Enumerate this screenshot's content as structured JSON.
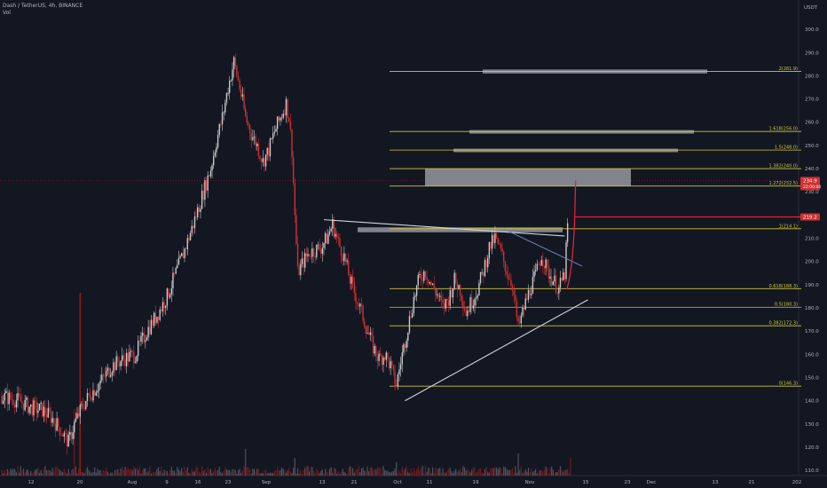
{
  "header": {
    "symbol_line": "Dash / TetherUS, 4h, BINANCE",
    "volume_label": "Vol"
  },
  "colors": {
    "background": "#131722",
    "fib_line": "#cfc43a",
    "zone": "#9a9ca3",
    "trendline": "#d1d4dc",
    "down_candle": "#d32f2f",
    "up_candle": "#c8c8c8",
    "projection": "#e0243a",
    "axis_text": "#b2b5be"
  },
  "chart_data": {
    "type": "candlestick",
    "title": "Dash / TetherUS, 4h, BINANCE",
    "currency_label": "USDT",
    "ylim": [
      105,
      315
    ],
    "y_ticks": [
      "110.0",
      "120.0",
      "130.0",
      "140.0",
      "150.0",
      "160.0",
      "170.0",
      "180.0",
      "190.0",
      "200.0",
      "210.0",
      "220.0",
      "230.0",
      "240.0",
      "250.0",
      "260.0",
      "270.0",
      "280.0",
      "290.0",
      "300.0",
      "310.0"
    ],
    "x_tick_labels": [
      "12",
      "20",
      "Aug",
      "9",
      "16",
      "23",
      "Sep",
      "13",
      "21",
      "Oct",
      "11",
      "19",
      "Nov",
      "15",
      "23",
      "Dec",
      "13",
      "21",
      "202"
    ],
    "price_path": [
      [
        0,
        142
      ],
      [
        6,
        140
      ],
      [
        10,
        137
      ],
      [
        14,
        136
      ],
      [
        17,
        133
      ],
      [
        20,
        128
      ],
      [
        23,
        122
      ],
      [
        25,
        130
      ],
      [
        28,
        138
      ],
      [
        30,
        142
      ],
      [
        34,
        148
      ],
      [
        38,
        155
      ],
      [
        42,
        158
      ],
      [
        46,
        160
      ],
      [
        50,
        170
      ],
      [
        54,
        178
      ],
      [
        57,
        185
      ],
      [
        60,
        195
      ],
      [
        63,
        205
      ],
      [
        66,
        216
      ],
      [
        69,
        228
      ],
      [
        72,
        240
      ],
      [
        74,
        252
      ],
      [
        76,
        262
      ],
      [
        78,
        275
      ],
      [
        80,
        286
      ],
      [
        82,
        275
      ],
      [
        84,
        262
      ],
      [
        86,
        255
      ],
      [
        88,
        250
      ],
      [
        90,
        243
      ],
      [
        92,
        248
      ],
      [
        94,
        256
      ],
      [
        96,
        262
      ],
      [
        98,
        268
      ],
      [
        99,
        262
      ],
      [
        100,
        248
      ],
      [
        101,
        220
      ],
      [
        102,
        195
      ],
      [
        104,
        200
      ],
      [
        106,
        204
      ],
      [
        108,
        205
      ],
      [
        110,
        206
      ],
      [
        112,
        210
      ],
      [
        114,
        216
      ],
      [
        116,
        208
      ],
      [
        118,
        202
      ],
      [
        120,
        192
      ],
      [
        122,
        185
      ],
      [
        124,
        178
      ],
      [
        126,
        170
      ],
      [
        128,
        163
      ],
      [
        130,
        158
      ],
      [
        132,
        160
      ],
      [
        134,
        155
      ],
      [
        135,
        150
      ],
      [
        136,
        147
      ],
      [
        138,
        160
      ],
      [
        140,
        172
      ],
      [
        142,
        184
      ],
      [
        144,
        193
      ],
      [
        146,
        196
      ],
      [
        148,
        190
      ],
      [
        150,
        186
      ],
      [
        152,
        180
      ],
      [
        154,
        184
      ],
      [
        156,
        192
      ],
      [
        158,
        188
      ],
      [
        160,
        178
      ],
      [
        162,
        183
      ],
      [
        164,
        188
      ],
      [
        166,
        196
      ],
      [
        168,
        206
      ],
      [
        170,
        210
      ],
      [
        172,
        204
      ],
      [
        174,
        196
      ],
      [
        176,
        190
      ],
      [
        178,
        171
      ],
      [
        180,
        180
      ],
      [
        182,
        188
      ],
      [
        184,
        194
      ],
      [
        186,
        203
      ],
      [
        188,
        196
      ],
      [
        190,
        192
      ],
      [
        192,
        188
      ],
      [
        194,
        195
      ],
      [
        196,
        234.9
      ]
    ],
    "volume_spikes": [
      [
        25,
        75
      ],
      [
        84,
        30
      ],
      [
        101,
        20
      ],
      [
        136,
        15
      ],
      [
        178,
        25
      ],
      [
        196,
        20
      ]
    ],
    "fib_levels": [
      {
        "ratio": "0",
        "price": 146.3,
        "label": "0(146.3)"
      },
      {
        "ratio": "0.382",
        "price": 172.3,
        "label": "0.382(172.3)"
      },
      {
        "ratio": "0.5",
        "price": 180.3,
        "label": "0.5(180.3)"
      },
      {
        "ratio": "0.618",
        "price": 188.3,
        "label": "0.618(188.3)"
      },
      {
        "ratio": "1",
        "price": 214.1,
        "label": "1(214.1)"
      },
      {
        "ratio": "1.272",
        "price": 232.5,
        "label": "1.272(232.5)"
      },
      {
        "ratio": "1.382",
        "price": 240.0,
        "label": "1.382(240.0)"
      },
      {
        "ratio": "1.5",
        "price": 248.0,
        "label": "1.5(248.0)"
      },
      {
        "ratio": "1.618",
        "price": 256.0,
        "label": "1.618(256.0)"
      },
      {
        "ratio": "2",
        "price": 281.9,
        "label": "2(281.9)"
      }
    ],
    "zones": [
      {
        "name": "resistance-zone",
        "price_low": 212.6,
        "price_high": 214.7
      },
      {
        "name": "target-zone-1",
        "price_low": 232.5,
        "price_high": 240.0
      },
      {
        "name": "target-zone-2",
        "price_low": 247.1,
        "price_high": 248.6
      },
      {
        "name": "target-zone-3",
        "price_low": 255.1,
        "price_high": 256.6
      },
      {
        "name": "target-zone-4",
        "price_low": 281.0,
        "price_high": 282.7
      }
    ],
    "trendlines": [
      {
        "name": "support-trendline",
        "from": [
          139,
          140
        ],
        "to": [
          202,
          183.5
        ]
      },
      {
        "name": "resistance-trendline",
        "from": [
          111,
          218
        ],
        "to": [
          194,
          211
        ]
      },
      {
        "name": "short-trendline",
        "from": [
          173,
          214
        ],
        "to": [
          200,
          198
        ]
      }
    ],
    "price_labels": [
      {
        "name": "last-price",
        "value": "234.9",
        "sub": "22:00:00",
        "price": 234.9
      },
      {
        "name": "projection-level",
        "value": "219.2",
        "price": 219.2
      }
    ],
    "grid": false
  }
}
